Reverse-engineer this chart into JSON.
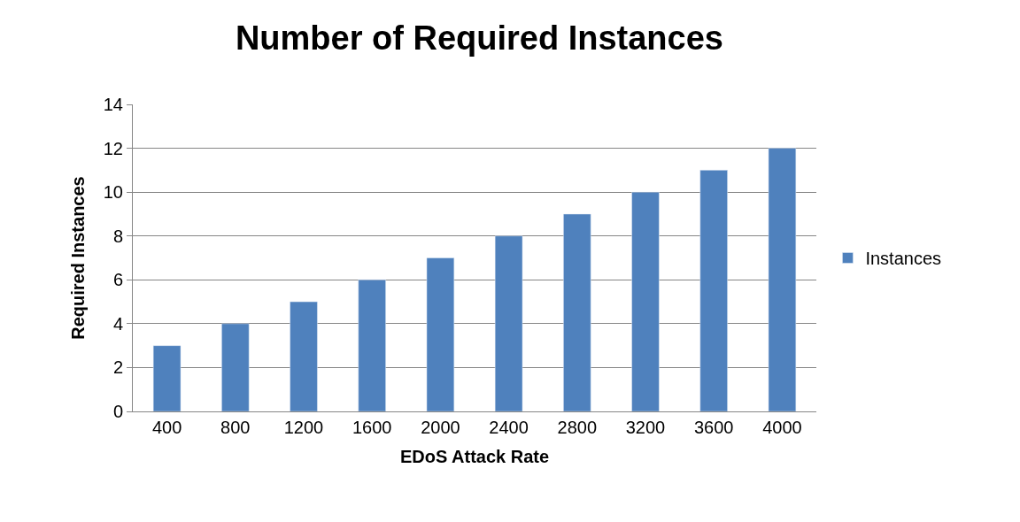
{
  "chart_data": {
    "type": "bar",
    "title": "Number of Required Instances",
    "xlabel": "EDoS Attack Rate",
    "ylabel": "Required Instances",
    "categories": [
      "400",
      "800",
      "1200",
      "1600",
      "2000",
      "2400",
      "2800",
      "3200",
      "3600",
      "4000"
    ],
    "series": [
      {
        "name": "Instances",
        "color": "#4f81bd",
        "values": [
          3,
          4,
          5,
          6,
          7,
          8,
          9,
          10,
          11,
          12
        ]
      }
    ],
    "ylim": [
      0,
      14
    ],
    "yticks": [
      0,
      2,
      4,
      6,
      8,
      10,
      12,
      14
    ],
    "grid": "y",
    "legend": "right"
  }
}
